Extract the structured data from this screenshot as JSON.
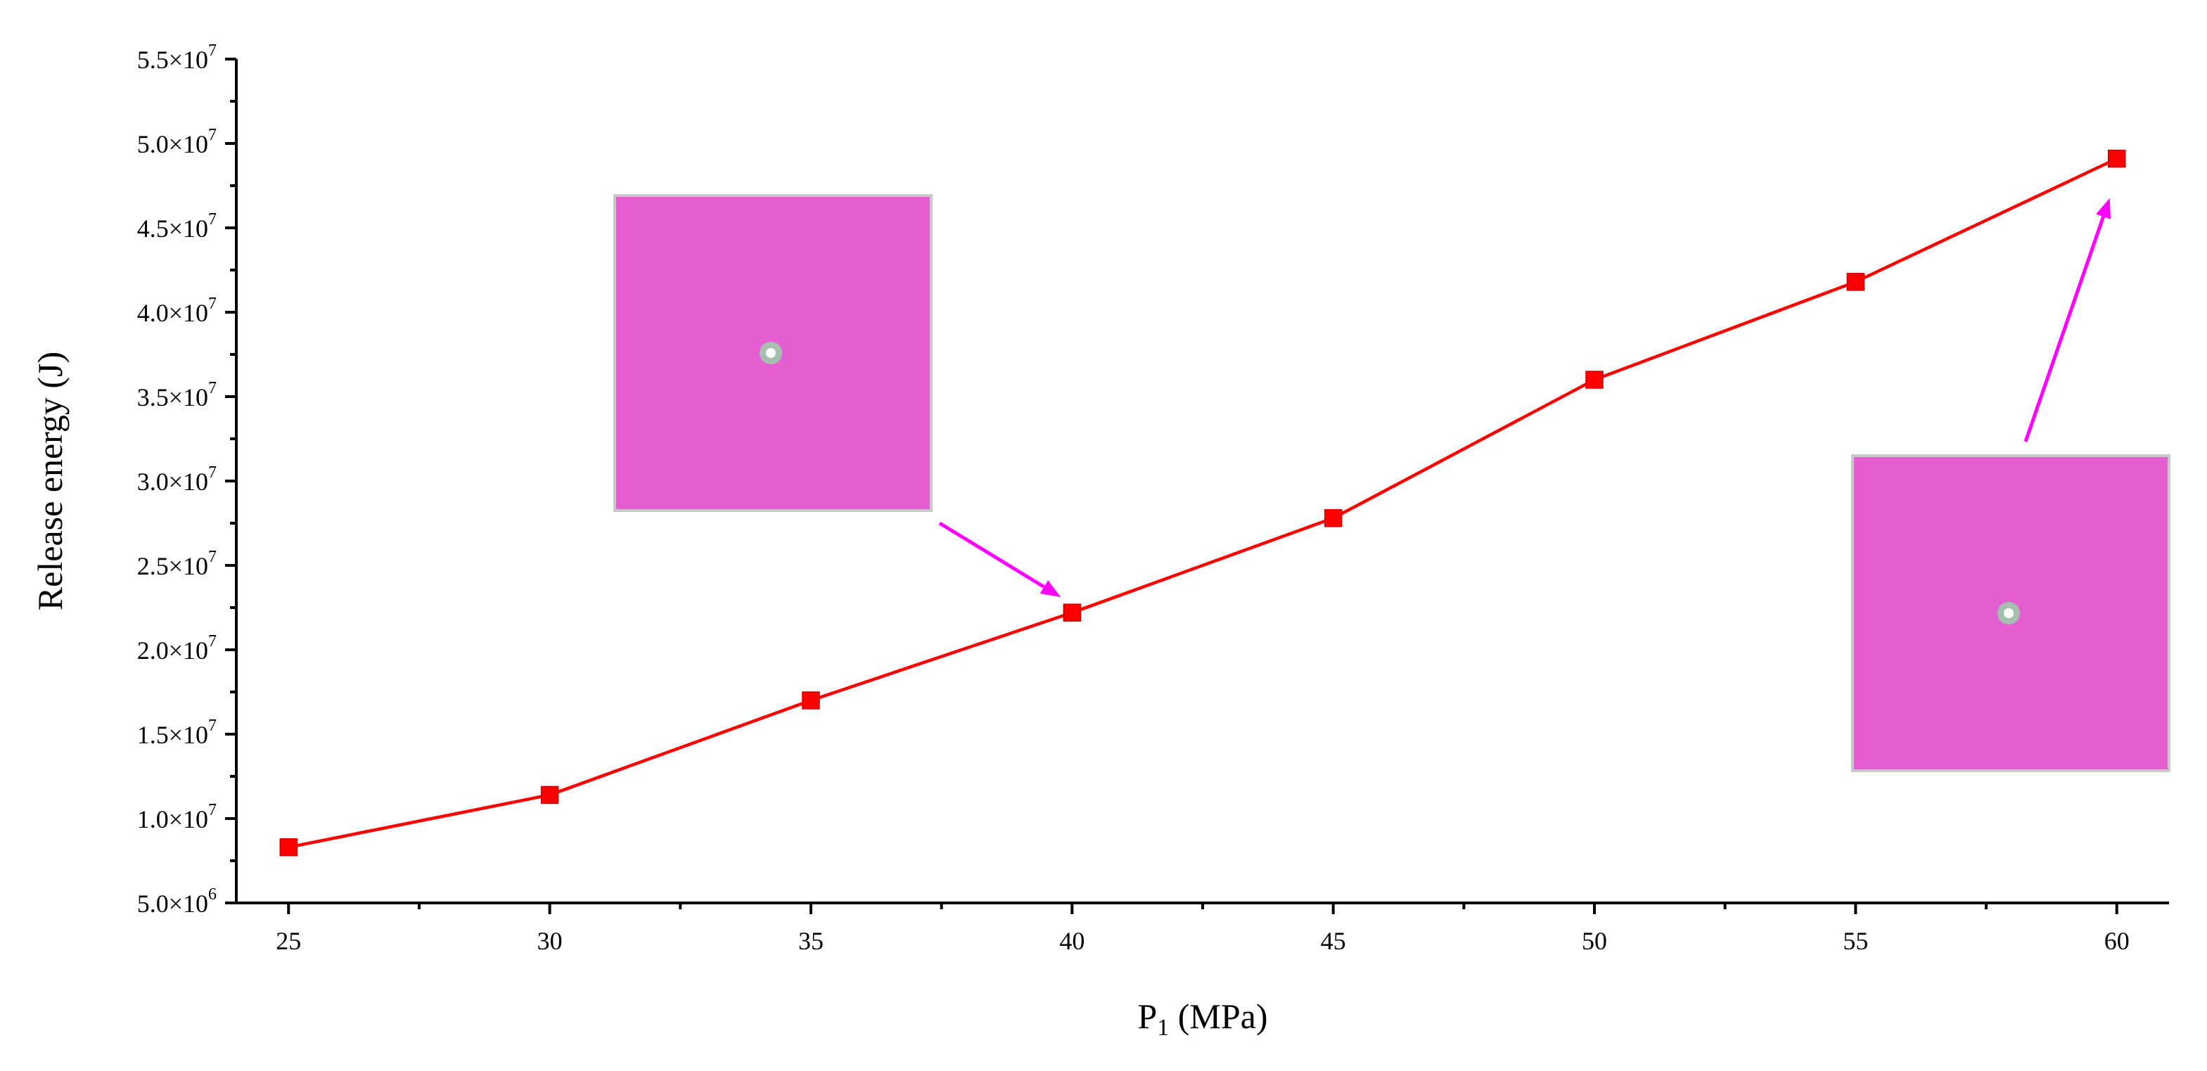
{
  "chart_data": {
    "type": "line",
    "xlabel_main": "P",
    "xlabel_sub": "1",
    "xlabel_unit": " (MPa)",
    "ylabel": "Release energy (J)",
    "xlim": [
      24,
      61
    ],
    "ylim": [
      5000000,
      55000000
    ],
    "xticks": [
      25,
      30,
      35,
      40,
      45,
      50,
      55,
      60
    ],
    "xtick_labels": [
      "25",
      "30",
      "35",
      "40",
      "45",
      "50",
      "55",
      "60"
    ],
    "yticks": [
      {
        "value": 5000000,
        "mantissa": "5.0×10",
        "exp": "6"
      },
      {
        "value": 10000000,
        "mantissa": "1.0×10",
        "exp": "7"
      },
      {
        "value": 15000000,
        "mantissa": "1.5×10",
        "exp": "7"
      },
      {
        "value": 20000000,
        "mantissa": "2.0×10",
        "exp": "7"
      },
      {
        "value": 25000000,
        "mantissa": "2.5×10",
        "exp": "7"
      },
      {
        "value": 30000000,
        "mantissa": "3.0×10",
        "exp": "7"
      },
      {
        "value": 35000000,
        "mantissa": "3.5×10",
        "exp": "7"
      },
      {
        "value": 40000000,
        "mantissa": "4.0×10",
        "exp": "7"
      },
      {
        "value": 45000000,
        "mantissa": "4.5×10",
        "exp": "7"
      },
      {
        "value": 50000000,
        "mantissa": "5.0×10",
        "exp": "7"
      },
      {
        "value": 55000000,
        "mantissa": "5.5×10",
        "exp": "7"
      }
    ],
    "series": [
      {
        "x": [
          25,
          30,
          35,
          40,
          45,
          50,
          55,
          60
        ],
        "values": [
          8300000,
          11400000,
          17000000,
          22200000,
          27800000,
          36000000,
          41800000,
          49100000
        ],
        "color": "#ff0000",
        "marker": "square"
      }
    ],
    "insets": [
      {
        "name": "inset-image-low",
        "fill": "#e460d2",
        "points_to_x": 40
      },
      {
        "name": "inset-image-high",
        "fill": "#e460d2",
        "points_to_x": 60
      }
    ],
    "grid": false,
    "arrow_color": "#ff00ff"
  }
}
